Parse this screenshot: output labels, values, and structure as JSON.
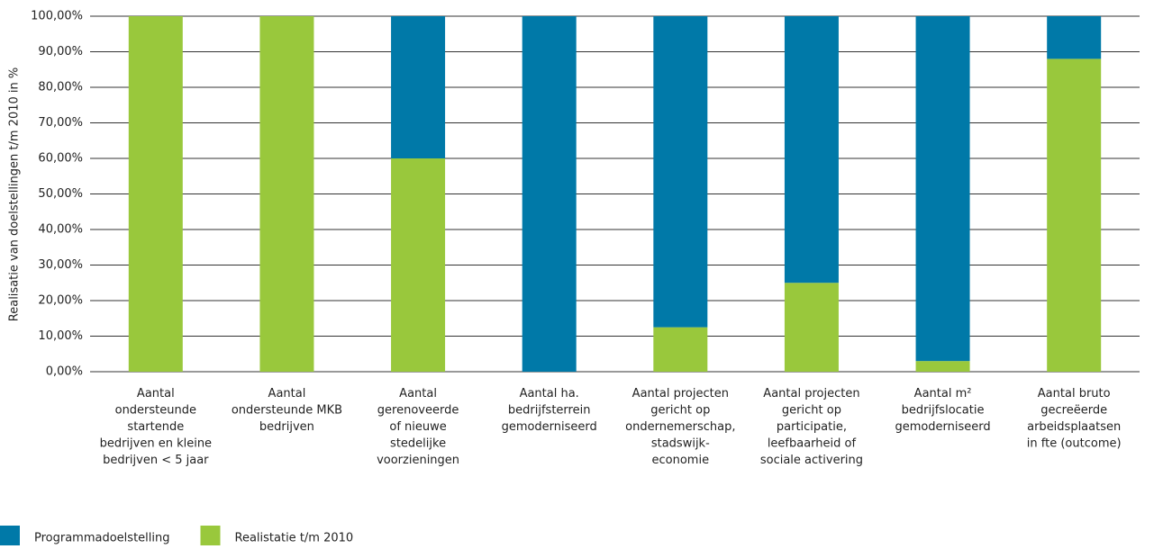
{
  "chart_data": {
    "type": "stacked_bar",
    "y_label": "Realisatie van doelstellingen t/m 2010 in %",
    "categories": [
      "Aantal\nondersteunde\nstartende\nbedrijven en kleine\nbedrijven < 5 jaar",
      "Aantal\nondersteunde MKB\nbedrijven",
      "Aantal\ngerenoveerde\nof nieuwe\nstedelijke\nvoorzieningen",
      "Aantal ha.\nbedrijfsterrein\ngemoderniseerd",
      "Aantal projecten\ngericht op\nondernemerschap,\nstadswijk-\neconomie",
      "Aantal projecten\ngericht op\nparticipatie,\nleefbaarheid of\nsociale activering",
      "Aantal m²\nbedrijfslocatie\ngemoderniseerd",
      "Aantal bruto\ngecreëerde\narbeidsplaatsen\nin fte (outcome)"
    ],
    "series": [
      {
        "name": "Realistatie t/m 2010",
        "color": "#99c83c",
        "values": [
          100,
          100,
          60,
          0,
          12.5,
          25,
          3,
          88
        ]
      },
      {
        "name": "Programmadoelstelling",
        "color": "#0079a8",
        "values": [
          0,
          0,
          40,
          100,
          87.5,
          75,
          97,
          12
        ]
      }
    ],
    "legend_order": [
      1,
      0
    ],
    "ylim": [
      0,
      100
    ],
    "yticks": [
      {
        "value": 0,
        "label": "0,00%"
      },
      {
        "value": 10,
        "label": "10,00%"
      },
      {
        "value": 20,
        "label": "20,00%"
      },
      {
        "value": 30,
        "label": "30,00%"
      },
      {
        "value": 40,
        "label": "40,00%"
      },
      {
        "value": 50,
        "label": "50,00%"
      },
      {
        "value": 60,
        "label": "60,00%"
      },
      {
        "value": 70,
        "label": "70,00%"
      },
      {
        "value": 80,
        "label": "80,00%"
      },
      {
        "value": 90,
        "label": "90,00%"
      },
      {
        "value": 100,
        "label": "100,00%"
      }
    ],
    "grid": true
  }
}
